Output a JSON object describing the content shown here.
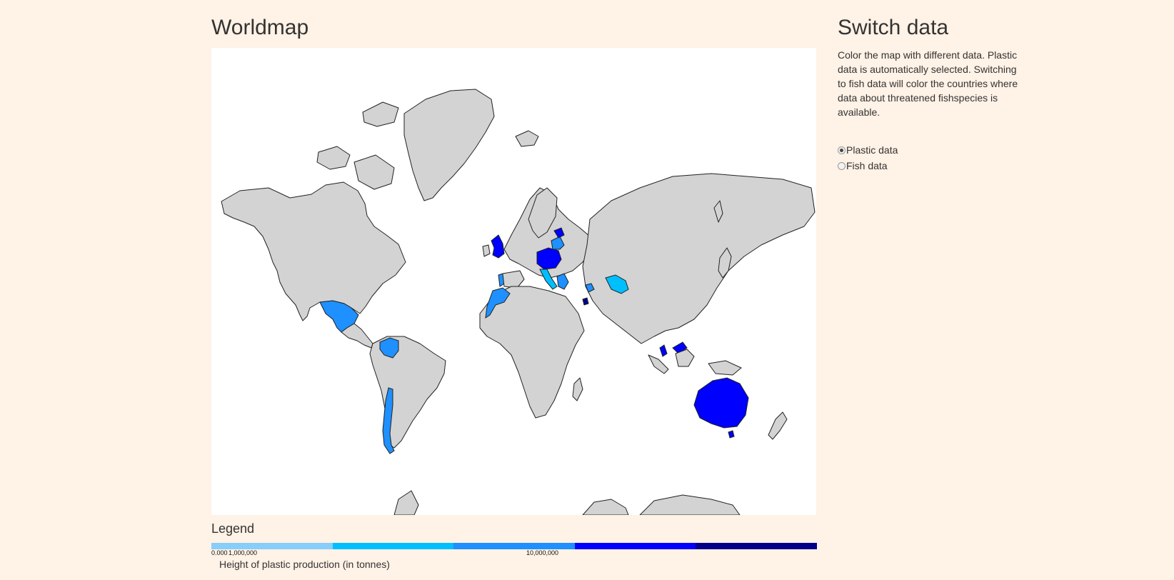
{
  "map": {
    "title": "Worldmap"
  },
  "legend": {
    "title": "Legend",
    "colors": [
      "#87cefa",
      "#00bfff",
      "#1e90ff",
      "#0000ff",
      "#00008b"
    ],
    "tick_labels": [
      {
        "label": "0.000",
        "value": 0
      },
      {
        "label": "1,000,000",
        "value": 1000000
      },
      {
        "label": "10,000,000",
        "value": 10000000
      }
    ],
    "caption": "Height of plastic production (in tonnes)"
  },
  "sidebar": {
    "title": "Switch data",
    "description": "Color the map with different data. Plastic data is automatically selected. Switching to fish data will color the countries where data about threatened fishspecies is available.",
    "options": [
      {
        "label": "Plastic data",
        "checked": true
      },
      {
        "label": "Fish data",
        "checked": false
      }
    ]
  },
  "colors": {
    "background": "#fff2e6",
    "land_default": "#d3d3d3",
    "ocean": "#ffffff"
  }
}
